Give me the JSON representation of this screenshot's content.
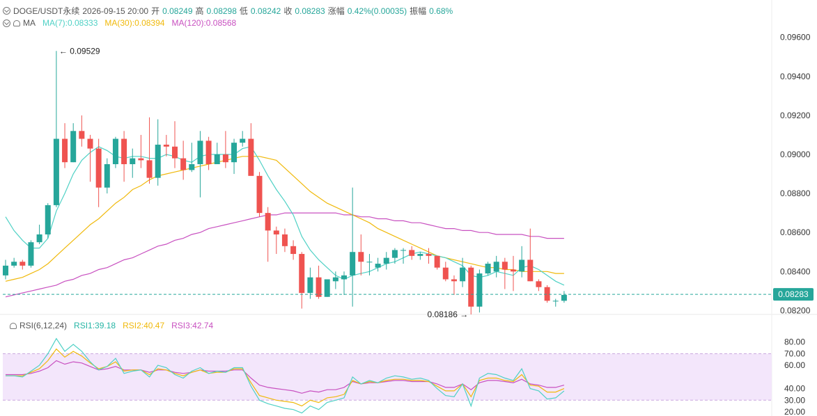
{
  "header": {
    "symbol": "DOGE/USDT永续",
    "time": "2026-09-15 20:00",
    "open_label": "开",
    "open": "0.08249",
    "high_label": "高",
    "high": "0.08298",
    "low_label": "低",
    "low": "0.08242",
    "close_label": "收",
    "close": "0.08283",
    "change_label": "涨幅",
    "change": "0.42%(0.00035)",
    "amp_label": "振幅",
    "amp": "0.68%"
  },
  "ma_legend": {
    "title": "MA",
    "ma7": "MA(7):0.08333",
    "ma30": "MA(30):0.08394",
    "ma120": "MA(120):0.08568"
  },
  "rsi_legend": {
    "title": "RSI(6,12,24)",
    "rsi1": "RSI1:39.18",
    "rsi2": "RSI2:40.47",
    "rsi3": "RSI3:42.74"
  },
  "colors": {
    "up": "#26a69a",
    "down": "#ef5350",
    "ma7": "#4fd1c5",
    "ma30": "#f0b90b",
    "ma120": "#c850c0",
    "band": "#f3e6fb"
  },
  "chart_data": [
    {
      "type": "candlestick",
      "title": "",
      "ylim": [
        0.0818,
        0.0972
      ],
      "y_ticks": [
        "0.09600",
        "0.09400",
        "0.09200",
        "0.09000",
        "0.08800",
        "0.08600",
        "0.08400",
        "0.08200"
      ],
      "y_tick_values": [
        0.096,
        0.094,
        0.092,
        0.09,
        0.088,
        0.086,
        0.084,
        0.082
      ],
      "last_price_label": "0.08283",
      "last_price": 0.08283,
      "max_label": "0.09529",
      "min_label": "0.08186",
      "ohlc": [
        [
          0.0838,
          0.0846,
          0.0836,
          0.0843
        ],
        [
          0.0843,
          0.0847,
          0.0842,
          0.0845
        ],
        [
          0.0845,
          0.0846,
          0.0841,
          0.0843
        ],
        [
          0.0843,
          0.0856,
          0.0842,
          0.0855
        ],
        [
          0.0855,
          0.0864,
          0.0854,
          0.0859
        ],
        [
          0.0859,
          0.0875,
          0.0857,
          0.0874
        ],
        [
          0.0874,
          0.0953,
          0.0873,
          0.0908
        ],
        [
          0.0908,
          0.0916,
          0.0893,
          0.0896
        ],
        [
          0.0896,
          0.0916,
          0.0896,
          0.0912
        ],
        [
          0.0912,
          0.092,
          0.0904,
          0.0908
        ],
        [
          0.0908,
          0.091,
          0.0886,
          0.0903
        ],
        [
          0.0903,
          0.0908,
          0.0873,
          0.0883
        ],
        [
          0.0883,
          0.0898,
          0.088,
          0.0895
        ],
        [
          0.0895,
          0.0909,
          0.0893,
          0.0908
        ],
        [
          0.0908,
          0.0912,
          0.0886,
          0.0895
        ],
        [
          0.0895,
          0.0903,
          0.0888,
          0.0898
        ],
        [
          0.0898,
          0.091,
          0.0893,
          0.0897
        ],
        [
          0.0897,
          0.0919,
          0.0885,
          0.0888
        ],
        [
          0.0888,
          0.0918,
          0.0884,
          0.0905
        ],
        [
          0.0905,
          0.091,
          0.0899,
          0.0904
        ],
        [
          0.0904,
          0.0917,
          0.0893,
          0.0898
        ],
        [
          0.0898,
          0.0907,
          0.0887,
          0.0892
        ],
        [
          0.0892,
          0.0906,
          0.0891,
          0.0895
        ],
        [
          0.0895,
          0.0912,
          0.0878,
          0.0907
        ],
        [
          0.0907,
          0.0909,
          0.0892,
          0.0895
        ],
        [
          0.0895,
          0.0906,
          0.0895,
          0.09
        ],
        [
          0.09,
          0.0912,
          0.0893,
          0.0896
        ],
        [
          0.0896,
          0.0908,
          0.089,
          0.0906
        ],
        [
          0.0906,
          0.0912,
          0.0904,
          0.0908
        ],
        [
          0.0908,
          0.0916,
          0.089,
          0.0889
        ],
        [
          0.0889,
          0.0891,
          0.0868,
          0.087
        ],
        [
          0.087,
          0.0873,
          0.0845,
          0.0861
        ],
        [
          0.0861,
          0.0863,
          0.0849,
          0.0859
        ],
        [
          0.0859,
          0.0862,
          0.085,
          0.0853
        ],
        [
          0.0853,
          0.0856,
          0.0846,
          0.0849
        ],
        [
          0.0849,
          0.085,
          0.0821,
          0.0829
        ],
        [
          0.0829,
          0.0842,
          0.0826,
          0.0837
        ],
        [
          0.0837,
          0.0843,
          0.0826,
          0.0827
        ],
        [
          0.0827,
          0.0836,
          0.0827,
          0.0836
        ],
        [
          0.0835,
          0.084,
          0.0831,
          0.0837
        ],
        [
          0.0836,
          0.084,
          0.0828,
          0.0838
        ],
        [
          0.0838,
          0.0883,
          0.0822,
          0.085
        ],
        [
          0.085,
          0.0859,
          0.0838,
          0.0845
        ],
        [
          0.0845,
          0.0849,
          0.0838,
          0.0845
        ],
        [
          0.0842,
          0.0847,
          0.084,
          0.0844
        ],
        [
          0.0844,
          0.085,
          0.0841,
          0.0847
        ],
        [
          0.0847,
          0.0852,
          0.0844,
          0.0851
        ],
        [
          0.0851,
          0.0852,
          0.0844,
          0.0851
        ],
        [
          0.0851,
          0.0853,
          0.0846,
          0.0848
        ],
        [
          0.0848,
          0.085,
          0.0846,
          0.0849
        ],
        [
          0.0849,
          0.0852,
          0.0844,
          0.0848
        ],
        [
          0.0848,
          0.0848,
          0.0841,
          0.0842
        ],
        [
          0.0842,
          0.0845,
          0.0835,
          0.0836
        ],
        [
          0.0836,
          0.0838,
          0.0828,
          0.0835
        ],
        [
          0.0835,
          0.0847,
          0.0832,
          0.0842
        ],
        [
          0.0842,
          0.0843,
          0.0818,
          0.0822
        ],
        [
          0.0822,
          0.0841,
          0.0819,
          0.0839
        ],
        [
          0.0839,
          0.0845,
          0.0838,
          0.0844
        ],
        [
          0.084,
          0.0848,
          0.0837,
          0.0845
        ],
        [
          0.0845,
          0.0847,
          0.0831,
          0.0841
        ],
        [
          0.0841,
          0.0848,
          0.083,
          0.084
        ],
        [
          0.084,
          0.0853,
          0.0837,
          0.0846
        ],
        [
          0.0846,
          0.0862,
          0.0835,
          0.0835
        ],
        [
          0.0835,
          0.0836,
          0.083,
          0.0832
        ],
        [
          0.0832,
          0.0833,
          0.0824,
          0.0825
        ],
        [
          0.0825,
          0.0826,
          0.0822,
          0.0825
        ],
        [
          0.0825,
          0.083,
          0.0824,
          0.0828
        ]
      ],
      "ma7": [
        0.0868,
        0.0861,
        0.0856,
        0.0852,
        0.0852,
        0.0857,
        0.0871,
        0.088,
        0.089,
        0.0897,
        0.0901,
        0.0904,
        0.0902,
        0.0899,
        0.0898,
        0.0899,
        0.0899,
        0.0898,
        0.0898,
        0.09,
        0.0899,
        0.0897,
        0.0896,
        0.0899,
        0.09,
        0.09,
        0.09,
        0.09,
        0.0903,
        0.0904,
        0.0897,
        0.0889,
        0.0882,
        0.0876,
        0.0869,
        0.0858,
        0.0851,
        0.0846,
        0.0842,
        0.0838,
        0.0836,
        0.0838,
        0.0839,
        0.084,
        0.0842,
        0.0844,
        0.0845,
        0.0847,
        0.0849,
        0.085,
        0.0849,
        0.0848,
        0.0847,
        0.0845,
        0.0843,
        0.0838,
        0.0837,
        0.0838,
        0.084,
        0.0839,
        0.0838,
        0.0842,
        0.0843,
        0.0841,
        0.0838,
        0.0835,
        0.0833
      ],
      "ma30": [
        0.0835,
        0.0836,
        0.0837,
        0.0839,
        0.0841,
        0.0844,
        0.0848,
        0.0852,
        0.0856,
        0.086,
        0.0864,
        0.0867,
        0.0871,
        0.0875,
        0.0878,
        0.0882,
        0.0884,
        0.0887,
        0.0889,
        0.089,
        0.0891,
        0.0892,
        0.0893,
        0.0894,
        0.0895,
        0.0896,
        0.0897,
        0.0898,
        0.0899,
        0.0899,
        0.0899,
        0.0898,
        0.0897,
        0.0893,
        0.0889,
        0.0885,
        0.0881,
        0.0878,
        0.0875,
        0.0873,
        0.0871,
        0.0869,
        0.0867,
        0.0865,
        0.0862,
        0.086,
        0.0858,
        0.0856,
        0.0854,
        0.0852,
        0.085,
        0.0848,
        0.0847,
        0.0846,
        0.0845,
        0.0844,
        0.0843,
        0.0842,
        0.0842,
        0.0841,
        0.0841,
        0.084,
        0.084,
        0.084,
        0.084,
        0.0839,
        0.0839
      ],
      "ma120": [
        0.0827,
        0.0828,
        0.0829,
        0.083,
        0.0831,
        0.0832,
        0.0833,
        0.0835,
        0.0836,
        0.0838,
        0.0839,
        0.0841,
        0.0842,
        0.0844,
        0.0846,
        0.0847,
        0.0849,
        0.0851,
        0.0853,
        0.0854,
        0.0856,
        0.0857,
        0.0859,
        0.086,
        0.0862,
        0.0863,
        0.0864,
        0.0865,
        0.0866,
        0.0867,
        0.0868,
        0.0869,
        0.0869,
        0.087,
        0.087,
        0.087,
        0.087,
        0.087,
        0.087,
        0.087,
        0.0869,
        0.0869,
        0.0868,
        0.0868,
        0.0867,
        0.0867,
        0.0866,
        0.0866,
        0.0865,
        0.0865,
        0.0864,
        0.0863,
        0.0862,
        0.0862,
        0.0861,
        0.0861,
        0.086,
        0.086,
        0.0859,
        0.0859,
        0.0859,
        0.0859,
        0.0858,
        0.0858,
        0.0857,
        0.0857,
        0.0857
      ]
    },
    {
      "type": "line",
      "title": "",
      "ylim": [
        20,
        87
      ],
      "y_ticks": [
        "80.00",
        "70.00",
        "60.00",
        "40.00",
        "30.00",
        "20.00"
      ],
      "y_tick_values": [
        80,
        70,
        60,
        40,
        30,
        20
      ],
      "band": [
        30,
        70
      ],
      "rsi1": [
        51,
        51,
        50,
        55,
        60,
        70,
        83,
        72,
        78,
        72,
        63,
        56,
        59,
        66,
        53,
        55,
        56,
        50,
        60,
        58,
        52,
        49,
        55,
        58,
        53,
        55,
        54,
        58,
        58,
        42,
        30,
        27,
        25,
        23,
        22,
        19,
        25,
        22,
        28,
        30,
        32,
        50,
        44,
        47,
        45,
        49,
        51,
        50,
        48,
        49,
        47,
        40,
        34,
        33,
        44,
        25,
        49,
        53,
        52,
        49,
        47,
        57,
        40,
        38,
        31,
        32,
        38
      ],
      "rsi2": [
        51,
        51,
        51,
        54,
        57,
        64,
        74,
        67,
        72,
        68,
        62,
        57,
        59,
        63,
        55,
        56,
        56,
        52,
        57,
        56,
        53,
        51,
        54,
        56,
        53,
        54,
        54,
        57,
        57,
        45,
        34,
        32,
        30,
        29,
        28,
        25,
        30,
        28,
        32,
        33,
        35,
        47,
        44,
        46,
        45,
        47,
        48,
        48,
        47,
        47,
        46,
        42,
        38,
        38,
        44,
        33,
        47,
        49,
        49,
        47,
        46,
        52,
        43,
        42,
        37,
        37,
        40
      ],
      "rsi3": [
        52,
        52,
        52,
        53,
        55,
        58,
        64,
        61,
        63,
        62,
        59,
        56,
        57,
        59,
        56,
        56,
        56,
        54,
        56,
        56,
        54,
        53,
        54,
        56,
        55,
        55,
        55,
        56,
        56,
        49,
        43,
        41,
        40,
        39,
        38,
        36,
        38,
        37,
        39,
        39,
        41,
        46,
        44,
        45,
        45,
        46,
        47,
        47,
        46,
        46,
        46,
        44,
        41,
        41,
        44,
        39,
        45,
        47,
        47,
        46,
        45,
        48,
        44,
        43,
        41,
        41,
        43
      ]
    }
  ]
}
